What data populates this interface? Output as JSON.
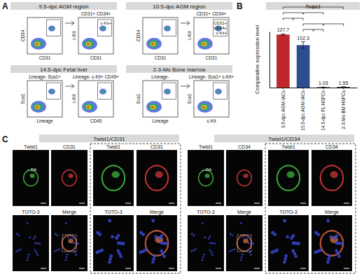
{
  "chart_data": {
    "type": "bar",
    "title": "Twist1",
    "y_label": "Comparative expression level",
    "categories": [
      "9.5-dpc AGM IACs",
      "10.5-dpc AGM IACs",
      "14.5-dpc FL HSPCs",
      "2-3-Mo BM HSPCs"
    ],
    "values": [
      127.7,
      102.3,
      1.03,
      1.55
    ],
    "errors": [
      1.5,
      8,
      0,
      0
    ],
    "colors": [
      "#c0272d",
      "#2e4d8f",
      "#1a1a1a",
      "#1a1a1a"
    ],
    "ylim": [
      0,
      135
    ],
    "tick_labels": "x",
    "data_labels": true,
    "significance": [
      {
        "from": 0,
        "to": 3,
        "label": "*"
      },
      {
        "from": 0,
        "to": 2,
        "label": "*"
      },
      {
        "from": 0,
        "to": 1,
        "label": "*"
      },
      {
        "from": 1,
        "to": 3,
        "label": "*"
      },
      {
        "from": 1,
        "to": 2,
        "label": "*"
      }
    ]
  },
  "panel_labels": [
    "A",
    "B",
    "C"
  ],
  "panel_a": {
    "groups": [
      {
        "title": "9.5-dpc AGM region",
        "plots": [
          {
            "y_label": "CD34",
            "x_label": "CD31"
          },
          {
            "title": "CD31+ CD34+",
            "y_label": "c-Kit",
            "x_label": "CD31",
            "gate_lines": [
              "c-Kit+"
            ]
          }
        ]
      },
      {
        "title": "10.5-dpc AGM region",
        "plots": [
          {
            "y_label": "CD34",
            "x_label": "CD31"
          },
          {
            "title": "CD31+ CD34+",
            "y_label": "c-Kit",
            "x_label": "CD31",
            "gate_lines": [
              "CD31+",
              "CD34+",
              "c-Kit+"
            ]
          }
        ]
      },
      {
        "title": "14.5-dpc Fetal liver",
        "plots": [
          {
            "title": "Lineage- Sca1+",
            "y_label": "Sca1",
            "x_label": "Lineage"
          },
          {
            "title": "Lineage- c-Kit+ CD45+",
            "y_label": "c-Kit",
            "x_label": "CD45"
          }
        ]
      },
      {
        "title": "2-3-Mo Bone marrow",
        "plots": [
          {
            "title": "Lineage-",
            "y_label": "Sca1",
            "x_label": "Lineage"
          },
          {
            "title": "Lineage- Sca1+ c-Kit+",
            "y_label": "Sca1",
            "x_label": "c-Kit"
          }
        ]
      }
    ]
  },
  "panel_c": {
    "groups": [
      {
        "title": "Twist1/CD31",
        "channels": [
          "Twist1",
          "CD31",
          "TOTO-3",
          "Merge"
        ],
        "zoom_channels": [
          "Twist1",
          "CD31",
          "TOTO-3",
          "Merge"
        ],
        "annotation": "←DA"
      },
      {
        "title": "Twist1/CD34",
        "channels": [
          "Twist1",
          "CD34",
          "TOTO-3",
          "Merge"
        ],
        "zoom_channels": [
          "Twist1",
          "CD34",
          "TOTO-3",
          "Merge"
        ],
        "annotation": "←DA"
      }
    ]
  }
}
